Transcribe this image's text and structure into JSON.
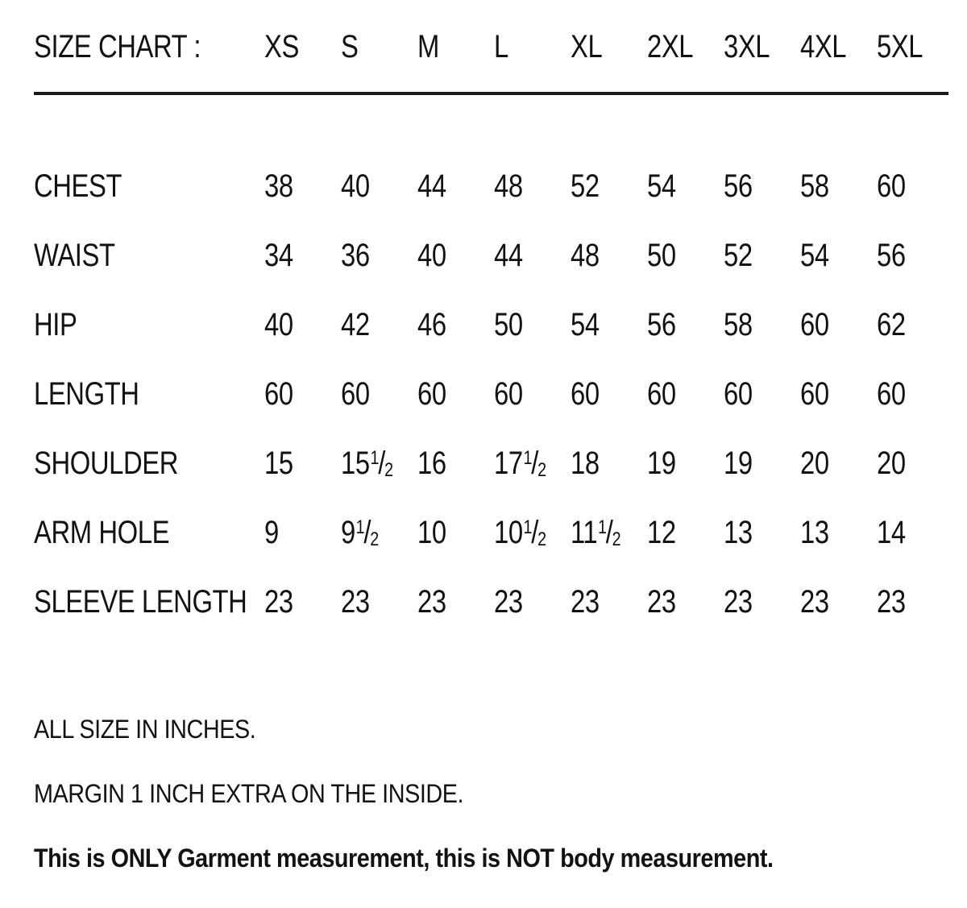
{
  "header": {
    "title": "SIZE CHART :",
    "sizes": [
      "XS",
      "S",
      "M",
      "L",
      "XL",
      "2XL",
      "3XL",
      "4XL",
      "5XL"
    ]
  },
  "table": {
    "rows": [
      {
        "label": "CHEST",
        "values": [
          "38",
          "40",
          "44",
          "48",
          "52",
          "54",
          "56",
          "58",
          "60"
        ]
      },
      {
        "label": "WAIST",
        "values": [
          "34",
          "36",
          "40",
          "44",
          "48",
          "50",
          "52",
          "54",
          "56"
        ]
      },
      {
        "label": "HIP",
        "values": [
          "40",
          "42",
          "46",
          "50",
          "54",
          "56",
          "58",
          "60",
          "62"
        ]
      },
      {
        "label": "LENGTH",
        "values": [
          "60",
          "60",
          "60",
          "60",
          "60",
          "60",
          "60",
          "60",
          "60"
        ]
      },
      {
        "label": "SHOULDER",
        "values": [
          "15",
          "15 1/2",
          "16",
          "17 1/2",
          "18",
          "19",
          "19",
          "20",
          "20"
        ]
      },
      {
        "label": "ARM HOLE",
        "values": [
          "9",
          "9 1/2",
          "10",
          "10 1/2",
          "11 1/2",
          "12",
          "13",
          "13",
          "14"
        ]
      },
      {
        "label": "SLEEVE LENGTH",
        "values": [
          "23",
          "23",
          "23",
          "23",
          "23",
          "23",
          "23",
          "23",
          "23"
        ]
      }
    ]
  },
  "footer": {
    "notes": [
      {
        "text": "ALL SIZE IN INCHES.",
        "bold": false
      },
      {
        "text": "MARGIN 1 INCH EXTRA ON THE INSIDE.",
        "bold": false
      },
      {
        "text": "This is ONLY Garment measurement, this is NOT body measurement.",
        "bold": true
      }
    ]
  },
  "colors": {
    "text": "#121212",
    "background": "#ffffff",
    "rule": "#1a1a1a"
  }
}
